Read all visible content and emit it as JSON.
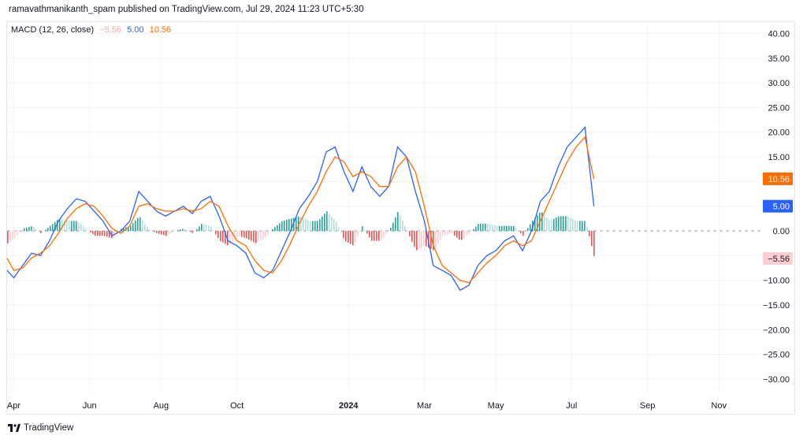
{
  "header": {
    "publisher_text": "ramavathmanikanth_spam published on TradingView.com, Jul 29, 2024 11:23 UTC+5:30"
  },
  "legend": {
    "title": "MACD (12, 26, close)",
    "histogram_value": "−5.56",
    "macd_value": "5.00",
    "signal_value": "10.56"
  },
  "footer": {
    "brand": "TradingView"
  },
  "colors": {
    "macd": "#2962ff",
    "signal": "#ff6d00",
    "hist_pos_strong": "#26a69a",
    "hist_pos_weak": "#b2dfdb",
    "hist_neg_strong": "#ef5350",
    "hist_neg_weak": "#ffcdd2",
    "grid": "#f0f3fa",
    "axis_text": "#131722",
    "macd_badge": "#2962ff",
    "signal_badge": "#ff6d00",
    "hist_badge": "#ffcdd2"
  },
  "chart_data": {
    "type": "line",
    "title": "MACD (12, 26, close)",
    "ylim": [
      -32,
      42
    ],
    "y_ticks": [
      "40.00",
      "35.00",
      "30.00",
      "25.00",
      "20.00",
      "15.00",
      "10.00",
      "5.00",
      "0.00",
      "−5.00",
      "−10.00",
      "−15.00",
      "−20.00",
      "−25.00",
      "−30.00"
    ],
    "x_labels": [
      {
        "label": "Apr",
        "x": 2023.25,
        "bold": false
      },
      {
        "label": "Jun",
        "x": 2023.42,
        "bold": false
      },
      {
        "label": "Aug",
        "x": 2023.58,
        "bold": false
      },
      {
        "label": "Oct",
        "x": 2023.75,
        "bold": false
      },
      {
        "label": "2024",
        "x": 2024.0,
        "bold": true
      },
      {
        "label": "Mar",
        "x": 2024.17,
        "bold": false
      },
      {
        "label": "May",
        "x": 2024.33,
        "bold": false
      },
      {
        "label": "Jul",
        "x": 2024.5,
        "bold": false
      },
      {
        "label": "Sep",
        "x": 2024.67,
        "bold": false
      },
      {
        "label": "Nov",
        "x": 2024.83,
        "bold": false
      }
    ],
    "xlim": [
      2023.235,
      2024.925
    ],
    "series": [
      {
        "name": "MACD",
        "x": [
          2023.235,
          2023.25,
          2023.27,
          2023.29,
          2023.31,
          2023.33,
          2023.35,
          2023.37,
          2023.39,
          2023.41,
          2023.43,
          2023.45,
          2023.47,
          2023.49,
          2023.51,
          2023.53,
          2023.55,
          2023.57,
          2023.59,
          2023.61,
          2023.63,
          2023.65,
          2023.67,
          2023.69,
          2023.71,
          2023.73,
          2023.75,
          2023.77,
          2023.79,
          2023.81,
          2023.83,
          2023.85,
          2023.87,
          2023.89,
          2023.91,
          2023.93,
          2023.95,
          2023.97,
          2023.99,
          2024.01,
          2024.03,
          2024.05,
          2024.07,
          2024.09,
          2024.11,
          2024.13,
          2024.15,
          2024.17,
          2024.19,
          2024.21,
          2024.23,
          2024.25,
          2024.27,
          2024.29,
          2024.31,
          2024.33,
          2024.35,
          2024.37,
          2024.39,
          2024.41,
          2024.43,
          2024.45,
          2024.47,
          2024.49,
          2024.51,
          2024.53,
          2024.55
        ],
        "values": [
          -8,
          -9.5,
          -7,
          -4.5,
          -5,
          -2,
          2,
          4.5,
          6.5,
          6,
          4,
          2,
          -1,
          0,
          2,
          8,
          6,
          4,
          3,
          4,
          5,
          3.5,
          6,
          7,
          3,
          -2,
          -3,
          -4.5,
          -8.5,
          -9.5,
          -8,
          -4,
          0,
          4.5,
          7,
          10,
          16,
          17,
          12,
          8,
          13,
          9,
          7,
          9,
          17,
          15,
          8,
          2,
          -7,
          -8,
          -9,
          -12,
          -11,
          -7,
          -5,
          -4,
          -2,
          -1,
          -4,
          0,
          6,
          8,
          13,
          17,
          19,
          21,
          5
        ]
      },
      {
        "name": "Signal",
        "x": [
          2023.235,
          2023.25,
          2023.27,
          2023.29,
          2023.31,
          2023.33,
          2023.35,
          2023.37,
          2023.39,
          2023.41,
          2023.43,
          2023.45,
          2023.47,
          2023.49,
          2023.51,
          2023.53,
          2023.55,
          2023.57,
          2023.59,
          2023.61,
          2023.63,
          2023.65,
          2023.67,
          2023.69,
          2023.71,
          2023.73,
          2023.75,
          2023.77,
          2023.79,
          2023.81,
          2023.83,
          2023.85,
          2023.87,
          2023.89,
          2023.91,
          2023.93,
          2023.95,
          2023.97,
          2023.99,
          2024.01,
          2024.03,
          2024.05,
          2024.07,
          2024.09,
          2024.11,
          2024.13,
          2024.15,
          2024.17,
          2024.19,
          2024.21,
          2024.23,
          2024.25,
          2024.27,
          2024.29,
          2024.31,
          2024.33,
          2024.35,
          2024.37,
          2024.39,
          2024.41,
          2024.43,
          2024.45,
          2024.47,
          2024.49,
          2024.51,
          2024.53,
          2024.55
        ],
        "values": [
          -5.5,
          -8,
          -7.5,
          -5.5,
          -4.5,
          -3,
          -0.5,
          2.5,
          4.5,
          5.5,
          5,
          3,
          0.5,
          -0.5,
          1,
          5,
          5.5,
          4.5,
          4,
          4,
          4.5,
          4,
          4.5,
          6,
          5,
          1,
          -2,
          -3,
          -6,
          -8,
          -8.5,
          -6,
          -2.5,
          1.5,
          5,
          8,
          12,
          15,
          14,
          11,
          12,
          11,
          9,
          9,
          13,
          15,
          12,
          5,
          -3,
          -7,
          -8.5,
          -10,
          -10.5,
          -8.5,
          -6.5,
          -5,
          -3,
          -2,
          -3,
          -2,
          2,
          6,
          10,
          14,
          17,
          19,
          10.5
        ]
      }
    ],
    "histogram": {
      "name": "Histogram",
      "x": [
        2023.235,
        2023.25,
        2023.27,
        2023.29,
        2023.31,
        2023.33,
        2023.35,
        2023.37,
        2023.39,
        2023.41,
        2023.43,
        2023.45,
        2023.47,
        2023.49,
        2023.51,
        2023.53,
        2023.55,
        2023.57,
        2023.59,
        2023.61,
        2023.63,
        2023.65,
        2023.67,
        2023.69,
        2023.71,
        2023.73,
        2023.75,
        2023.77,
        2023.79,
        2023.81,
        2023.83,
        2023.85,
        2023.87,
        2023.89,
        2023.91,
        2023.93,
        2023.95,
        2023.97,
        2023.99,
        2024.01,
        2024.03,
        2024.05,
        2024.07,
        2024.09,
        2024.11,
        2024.13,
        2024.15,
        2024.17,
        2024.19,
        2024.21,
        2024.23,
        2024.25,
        2024.27,
        2024.29,
        2024.31,
        2024.33,
        2024.35,
        2024.37,
        2024.39,
        2024.41,
        2024.43,
        2024.45,
        2024.47,
        2024.49,
        2024.51,
        2024.53,
        2024.55
      ],
      "values": [
        -2.5,
        -1.5,
        0.5,
        1,
        -0.5,
        1,
        2.5,
        2,
        2,
        0.5,
        -1,
        -1,
        -1.5,
        0.5,
        1,
        3,
        0.5,
        -0.5,
        -1,
        0,
        0.5,
        -0.5,
        1.5,
        1,
        -2,
        -3,
        -1,
        -1.5,
        -2.5,
        -1.5,
        0.5,
        2,
        2.5,
        3,
        2,
        2,
        4,
        2,
        -2,
        -3,
        1,
        -2,
        -2,
        0,
        4,
        0,
        -4,
        -3,
        -4,
        -1,
        -0.5,
        -2,
        -0.5,
        1.5,
        1.5,
        1,
        1,
        1,
        -1,
        2,
        4,
        2,
        3,
        3,
        2,
        2,
        -5.5
      ]
    },
    "current_values": {
      "macd": 5.0,
      "signal": 10.56,
      "histogram": -5.56
    }
  }
}
